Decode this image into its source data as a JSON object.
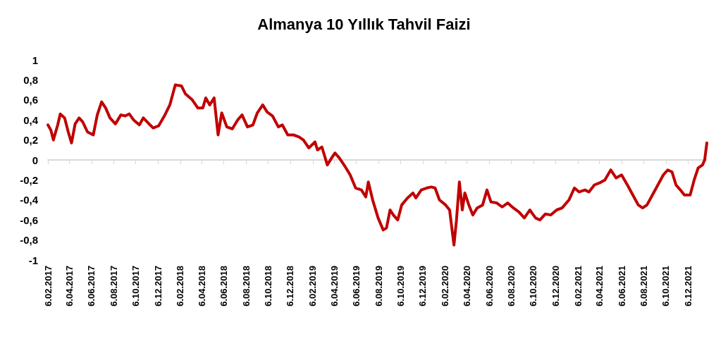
{
  "chart_data": {
    "type": "line",
    "title": "Almanya 10 Yıllık Tahvil Faizi",
    "x": [
      "2017-02-06",
      "2017-02-14",
      "2017-02-21",
      "2017-03-05",
      "2017-03-12",
      "2017-03-24",
      "2017-04-03",
      "2017-04-12",
      "2017-04-22",
      "2017-05-03",
      "2017-05-13",
      "2017-05-26",
      "2017-06-11",
      "2017-06-22",
      "2017-07-04",
      "2017-07-15",
      "2017-07-27",
      "2017-08-11",
      "2017-08-26",
      "2017-09-07",
      "2017-09-18",
      "2017-09-30",
      "2017-10-16",
      "2017-10-27",
      "2017-11-09",
      "2017-11-23",
      "2017-12-08",
      "2017-12-24",
      "2018-01-08",
      "2018-01-23",
      "2018-02-09",
      "2018-02-20",
      "2018-03-11",
      "2018-03-26",
      "2018-04-09",
      "2018-04-17",
      "2018-04-28",
      "2018-05-10",
      "2018-05-21",
      "2018-05-31",
      "2018-06-14",
      "2018-06-29",
      "2018-07-14",
      "2018-07-26",
      "2018-08-10",
      "2018-08-25",
      "2018-09-06",
      "2018-09-21",
      "2018-10-03",
      "2018-10-18",
      "2018-11-03",
      "2018-11-14",
      "2018-11-29",
      "2018-12-15",
      "2018-12-30",
      "2019-01-11",
      "2019-01-26",
      "2019-02-12",
      "2019-02-19",
      "2019-03-03",
      "2019-03-18",
      "2019-03-30",
      "2019-04-08",
      "2019-04-20",
      "2019-05-05",
      "2019-05-20",
      "2019-06-04",
      "2019-06-20",
      "2019-07-02",
      "2019-07-09",
      "2019-07-21",
      "2019-08-05",
      "2019-08-19",
      "2019-08-28",
      "2019-09-07",
      "2019-09-16",
      "2019-09-28",
      "2019-10-09",
      "2019-10-25",
      "2019-11-09",
      "2019-11-17",
      "2019-12-02",
      "2019-12-17",
      "2019-12-29",
      "2020-01-09",
      "2020-01-21",
      "2020-02-07",
      "2020-02-18",
      "2020-03-01",
      "2020-03-08",
      "2020-03-16",
      "2020-03-24",
      "2020-03-31",
      "2020-04-11",
      "2020-04-22",
      "2020-05-04",
      "2020-05-19",
      "2020-05-31",
      "2020-06-11",
      "2020-06-27",
      "2020-07-12",
      "2020-07-27",
      "2020-08-12",
      "2020-08-27",
      "2020-09-11",
      "2020-09-26",
      "2020-10-12",
      "2020-10-24",
      "2020-11-08",
      "2020-11-23",
      "2020-12-09",
      "2020-12-24",
      "2021-01-12",
      "2021-01-27",
      "2021-02-09",
      "2021-02-25",
      "2021-03-08",
      "2021-03-23",
      "2021-04-06",
      "2021-04-21",
      "2021-05-07",
      "2021-05-22",
      "2021-06-06",
      "2021-06-22",
      "2021-07-07",
      "2021-07-22",
      "2021-08-03",
      "2021-08-15",
      "2021-08-30",
      "2021-09-14",
      "2021-09-29",
      "2021-10-11",
      "2021-10-23",
      "2021-11-03",
      "2021-11-15",
      "2021-11-26",
      "2021-12-12",
      "2021-12-23",
      "2022-01-03",
      "2022-01-15",
      "2022-01-21",
      "2022-01-27"
    ],
    "series": [
      {
        "color": "#c00000",
        "values": [
          0.35,
          0.3,
          0.2,
          0.35,
          0.46,
          0.42,
          0.28,
          0.17,
          0.36,
          0.42,
          0.38,
          0.28,
          0.25,
          0.45,
          0.58,
          0.52,
          0.42,
          0.36,
          0.45,
          0.44,
          0.46,
          0.4,
          0.35,
          0.42,
          0.37,
          0.32,
          0.34,
          0.44,
          0.55,
          0.75,
          0.74,
          0.66,
          0.6,
          0.52,
          0.52,
          0.62,
          0.55,
          0.62,
          0.25,
          0.47,
          0.33,
          0.31,
          0.4,
          0.45,
          0.33,
          0.35,
          0.47,
          0.55,
          0.48,
          0.44,
          0.33,
          0.35,
          0.25,
          0.25,
          0.23,
          0.2,
          0.12,
          0.18,
          0.1,
          0.13,
          -0.05,
          0.02,
          0.07,
          0.02,
          -0.06,
          -0.15,
          -0.28,
          -0.3,
          -0.37,
          -0.22,
          -0.4,
          -0.58,
          -0.7,
          -0.68,
          -0.5,
          -0.55,
          -0.6,
          -0.45,
          -0.38,
          -0.33,
          -0.38,
          -0.3,
          -0.28,
          -0.27,
          -0.28,
          -0.4,
          -0.45,
          -0.5,
          -0.85,
          -0.6,
          -0.22,
          -0.5,
          -0.33,
          -0.45,
          -0.55,
          -0.48,
          -0.45,
          -0.3,
          -0.42,
          -0.43,
          -0.47,
          -0.43,
          -0.48,
          -0.52,
          -0.58,
          -0.5,
          -0.58,
          -0.6,
          -0.54,
          -0.55,
          -0.5,
          -0.48,
          -0.4,
          -0.28,
          -0.32,
          -0.3,
          -0.32,
          -0.25,
          -0.23,
          -0.2,
          -0.1,
          -0.18,
          -0.15,
          -0.25,
          -0.35,
          -0.45,
          -0.48,
          -0.45,
          -0.35,
          -0.25,
          -0.15,
          -0.1,
          -0.12,
          -0.25,
          -0.3,
          -0.35,
          -0.35,
          -0.2,
          -0.08,
          -0.05,
          0.0,
          0.17
        ]
      }
    ],
    "xlim": [
      "2017-02-06",
      "2022-01-27"
    ],
    "xticks": [
      {
        "value": "2017-02-06",
        "label": "6.02.2017"
      },
      {
        "value": "2017-04-06",
        "label": "6.04.2017"
      },
      {
        "value": "2017-06-06",
        "label": "6.06.2017"
      },
      {
        "value": "2017-08-06",
        "label": "6.08.2017"
      },
      {
        "value": "2017-10-06",
        "label": "6.10.2017"
      },
      {
        "value": "2017-12-06",
        "label": "6.12.2017"
      },
      {
        "value": "2018-02-06",
        "label": "6.02.2018"
      },
      {
        "value": "2018-04-06",
        "label": "6.04.2018"
      },
      {
        "value": "2018-06-06",
        "label": "6.06.2018"
      },
      {
        "value": "2018-08-06",
        "label": "6.08.2018"
      },
      {
        "value": "2018-10-06",
        "label": "6.10.2018"
      },
      {
        "value": "2018-12-06",
        "label": "6.12.2018"
      },
      {
        "value": "2019-02-06",
        "label": "6.02.2019"
      },
      {
        "value": "2019-04-06",
        "label": "6.04.2019"
      },
      {
        "value": "2019-06-06",
        "label": "6.06.2019"
      },
      {
        "value": "2019-08-06",
        "label": "6.08.2019"
      },
      {
        "value": "2019-10-06",
        "label": "6.10.2019"
      },
      {
        "value": "2019-12-06",
        "label": "6.12.2019"
      },
      {
        "value": "2020-02-06",
        "label": "6.02.2020"
      },
      {
        "value": "2020-04-06",
        "label": "6.04.2020"
      },
      {
        "value": "2020-06-06",
        "label": "6.06.2020"
      },
      {
        "value": "2020-08-06",
        "label": "6.08.2020"
      },
      {
        "value": "2020-10-06",
        "label": "6.10.2020"
      },
      {
        "value": "2020-12-06",
        "label": "6.12.2020"
      },
      {
        "value": "2021-02-06",
        "label": "6.02.2021"
      },
      {
        "value": "2021-04-06",
        "label": "6.04.2021"
      },
      {
        "value": "2021-06-06",
        "label": "6.06.2021"
      },
      {
        "value": "2021-08-06",
        "label": "6.08.2021"
      },
      {
        "value": "2021-10-06",
        "label": "6.10.2021"
      },
      {
        "value": "2021-12-06",
        "label": "6.12.2021"
      }
    ],
    "ylim": [
      -1,
      1
    ],
    "yticks": [
      {
        "value": -1,
        "label": "-1"
      },
      {
        "value": -0.8,
        "label": "-0,8"
      },
      {
        "value": -0.6,
        "label": "-0,6"
      },
      {
        "value": -0.4,
        "label": "-0,4"
      },
      {
        "value": -0.2,
        "label": "-0,2"
      },
      {
        "value": 0,
        "label": "0"
      },
      {
        "value": 0.2,
        "label": "0,2"
      },
      {
        "value": 0.4,
        "label": "0,4"
      },
      {
        "value": 0.6,
        "label": "0,6"
      },
      {
        "value": 0.8,
        "label": "0,8"
      },
      {
        "value": 1,
        "label": "1"
      }
    ],
    "marker": "none",
    "line_style": "solid"
  }
}
